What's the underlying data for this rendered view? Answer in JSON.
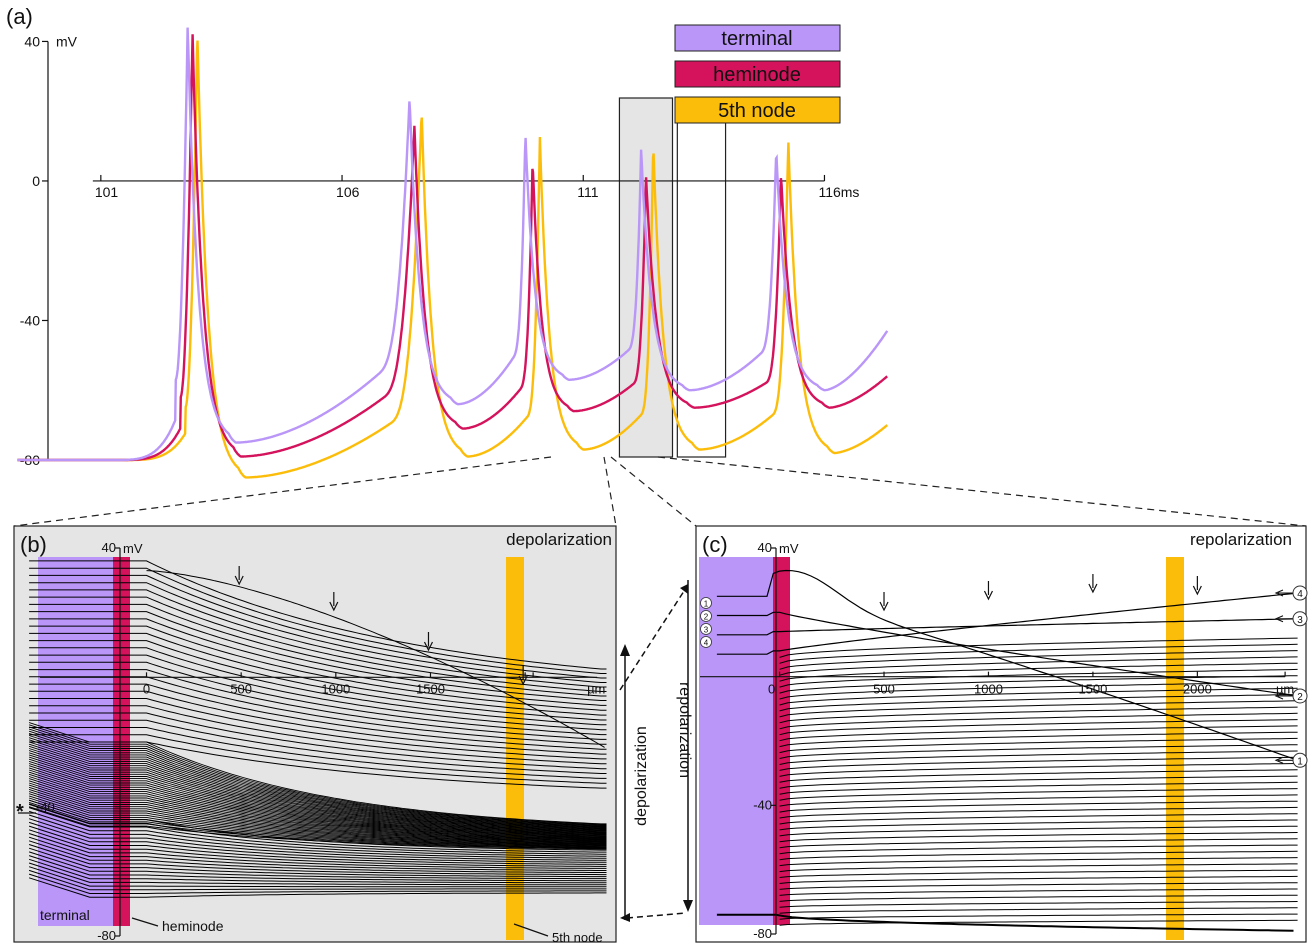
{
  "panels": {
    "a": {
      "label": "(a)"
    },
    "b": {
      "label": "(b)"
    },
    "c": {
      "label": "(c)"
    }
  },
  "legend": {
    "items": [
      {
        "label": "terminal",
        "color": "#b996f8"
      },
      {
        "label": "heminode",
        "color": "#d4135c"
      },
      {
        "label": "5th node",
        "color": "#fcbd0a"
      }
    ]
  },
  "colors": {
    "terminal": "#b996f8",
    "heminode": "#d4135c",
    "fifth_node": "#fcbd0a",
    "window_fill": "#e5e5e5"
  },
  "chart_data": [
    {
      "panel": "a",
      "type": "line",
      "x_unit": "ms",
      "y_unit": "mV",
      "xlim": [
        99.2,
        117.4
      ],
      "ylim": [
        -80,
        45
      ],
      "x_ticks": [
        101,
        106,
        111,
        116
      ],
      "x_tick_labels": [
        "101",
        "106",
        "111",
        "116ms"
      ],
      "y_ticks": [
        40,
        0,
        -40,
        -80
      ],
      "y_tick_labels": [
        "40",
        "0",
        "-40",
        "-80"
      ],
      "y_unit_label": "mV",
      "spikes": {
        "terminal": [
          {
            "t": 102.8,
            "peak": 45,
            "ahp_t": 103.8,
            "ahp": -75,
            "pre": -57
          },
          {
            "t": 107.4,
            "peak": 24,
            "ahp_t": 108.4,
            "ahp": -64,
            "pre": -47
          },
          {
            "t": 109.8,
            "peak": 14,
            "ahp_t": 110.7,
            "ahp": -57,
            "pre": -45
          },
          {
            "t": 112.2,
            "peak": 9,
            "ahp_t": 113.2,
            "ahp": -60,
            "pre": -45
          },
          {
            "t": 115.0,
            "peak": 9,
            "ahp_t": 116.0,
            "ahp": -60,
            "pre": -45
          }
        ],
        "heminode": [
          {
            "t": 102.9,
            "peak": 43,
            "ahp_t": 103.9,
            "ahp": -79,
            "pre": -62
          },
          {
            "t": 107.5,
            "peak": 16,
            "ahp_t": 108.5,
            "ahp": -71,
            "pre": -55
          },
          {
            "t": 109.95,
            "peak": 6,
            "ahp_t": 110.8,
            "ahp": -66,
            "pre": -55
          },
          {
            "t": 112.3,
            "peak": 2,
            "ahp_t": 113.3,
            "ahp": -65,
            "pre": -55
          },
          {
            "t": 115.1,
            "peak": 2,
            "ahp_t": 116.1,
            "ahp": -65,
            "pre": -55
          }
        ],
        "fifth_node": [
          {
            "t": 103.0,
            "peak": 43,
            "ahp_t": 104.0,
            "ahp": -85,
            "pre": -65
          },
          {
            "t": 107.65,
            "peak": 20,
            "ahp_t": 108.6,
            "ahp": -79,
            "pre": -63
          },
          {
            "t": 110.1,
            "peak": 13,
            "ahp_t": 111.0,
            "ahp": -77,
            "pre": -63
          },
          {
            "t": 112.45,
            "peak": 11,
            "ahp_t": 113.4,
            "ahp": -77,
            "pre": -63
          },
          {
            "t": 115.25,
            "peak": 12,
            "ahp_t": 116.2,
            "ahp": -78,
            "pre": -63
          }
        ]
      },
      "baseline_mV": -80,
      "end": {
        "t": 117.3,
        "terminal": -43,
        "heminode": -56,
        "fifth_node": -70
      },
      "windows": [
        {
          "name": "depolarization",
          "t": [
            111.75,
            112.85
          ],
          "shaded": true
        },
        {
          "name": "repolarization",
          "t": [
            112.95,
            113.95
          ],
          "shaded": false
        }
      ]
    },
    {
      "panel": "b",
      "title": "depolarization",
      "type": "line",
      "x_unit": "µm",
      "y_unit": "mV",
      "xlim": [
        -700,
        2480
      ],
      "ylim": [
        -80,
        40
      ],
      "x_ticks": [
        0,
        500,
        1000,
        1500,
        2000
      ],
      "x_tick_labels": [
        "0",
        "500",
        "1000",
        "1500",
        "µm"
      ],
      "y_ticks": [
        40,
        -40,
        -80
      ],
      "y_tick_labels": [
        "40",
        "-40",
        "-80"
      ],
      "y_unit_label": "mV",
      "family": {
        "sparse_top": [
          36,
          22
        ],
        "dense": [
          -20,
          -46
        ],
        "lower": [
          -44,
          -68
        ],
        "last_threshold": -35
      },
      "arrows": [
        500,
        1000,
        1500,
        2000
      ],
      "region_labels": {
        "terminal": "terminal",
        "heminode": "heminode",
        "fifth_node": "5th node"
      },
      "marker": "*",
      "direction_label": "depolarization"
    },
    {
      "panel": "c",
      "title": "repolarization",
      "type": "line",
      "x_unit": "µm",
      "y_unit": "mV",
      "xlim": [
        -400,
        2520
      ],
      "ylim": [
        -80,
        40
      ],
      "x_ticks": [
        0,
        500,
        1000,
        1500,
        2000
      ],
      "x_tick_labels": [
        "0",
        "500",
        "1000",
        "1500",
        "2000",
        "µm"
      ],
      "y_ticks": [
        40,
        -40,
        -80
      ],
      "y_tick_labels": [
        "40",
        "-40",
        "-80"
      ],
      "y_unit_label": "mV",
      "numbered_traces": [
        {
          "label": "1",
          "start": 26,
          "end": -26
        },
        {
          "label": "2",
          "start": 20,
          "end": -6
        },
        {
          "label": "3",
          "start": 14,
          "end": 18
        },
        {
          "label": "4",
          "start": 8,
          "end": 26
        }
      ],
      "arrows": [
        500,
        1000,
        1500,
        2000
      ],
      "direction_label": "repolarization"
    }
  ]
}
